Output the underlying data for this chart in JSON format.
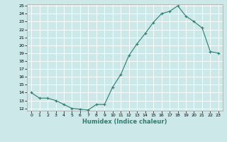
{
  "x": [
    0,
    1,
    2,
    3,
    4,
    5,
    6,
    7,
    8,
    9,
    10,
    11,
    12,
    13,
    14,
    15,
    16,
    17,
    18,
    19,
    20,
    21,
    22,
    23
  ],
  "y": [
    14.0,
    13.3,
    13.3,
    13.0,
    12.5,
    12.0,
    11.9,
    11.8,
    12.5,
    12.5,
    14.7,
    16.3,
    18.7,
    20.2,
    21.5,
    22.9,
    24.0,
    24.3,
    25.0,
    23.7,
    23.0,
    22.2,
    19.2,
    19.0
  ],
  "xlabel": "Humidex (Indice chaleur)",
  "line_color": "#2e7d6e",
  "marker": "+",
  "bg_color": "#cce8e8",
  "grid_color": "#ffffff",
  "ylim": [
    12,
    25
  ],
  "xlim": [
    -0.5,
    23.5
  ],
  "yticks": [
    12,
    13,
    14,
    15,
    16,
    17,
    18,
    19,
    20,
    21,
    22,
    23,
    24,
    25
  ],
  "xticks": [
    0,
    1,
    2,
    3,
    4,
    5,
    6,
    7,
    8,
    9,
    10,
    11,
    12,
    13,
    14,
    15,
    16,
    17,
    18,
    19,
    20,
    21,
    22,
    23
  ]
}
